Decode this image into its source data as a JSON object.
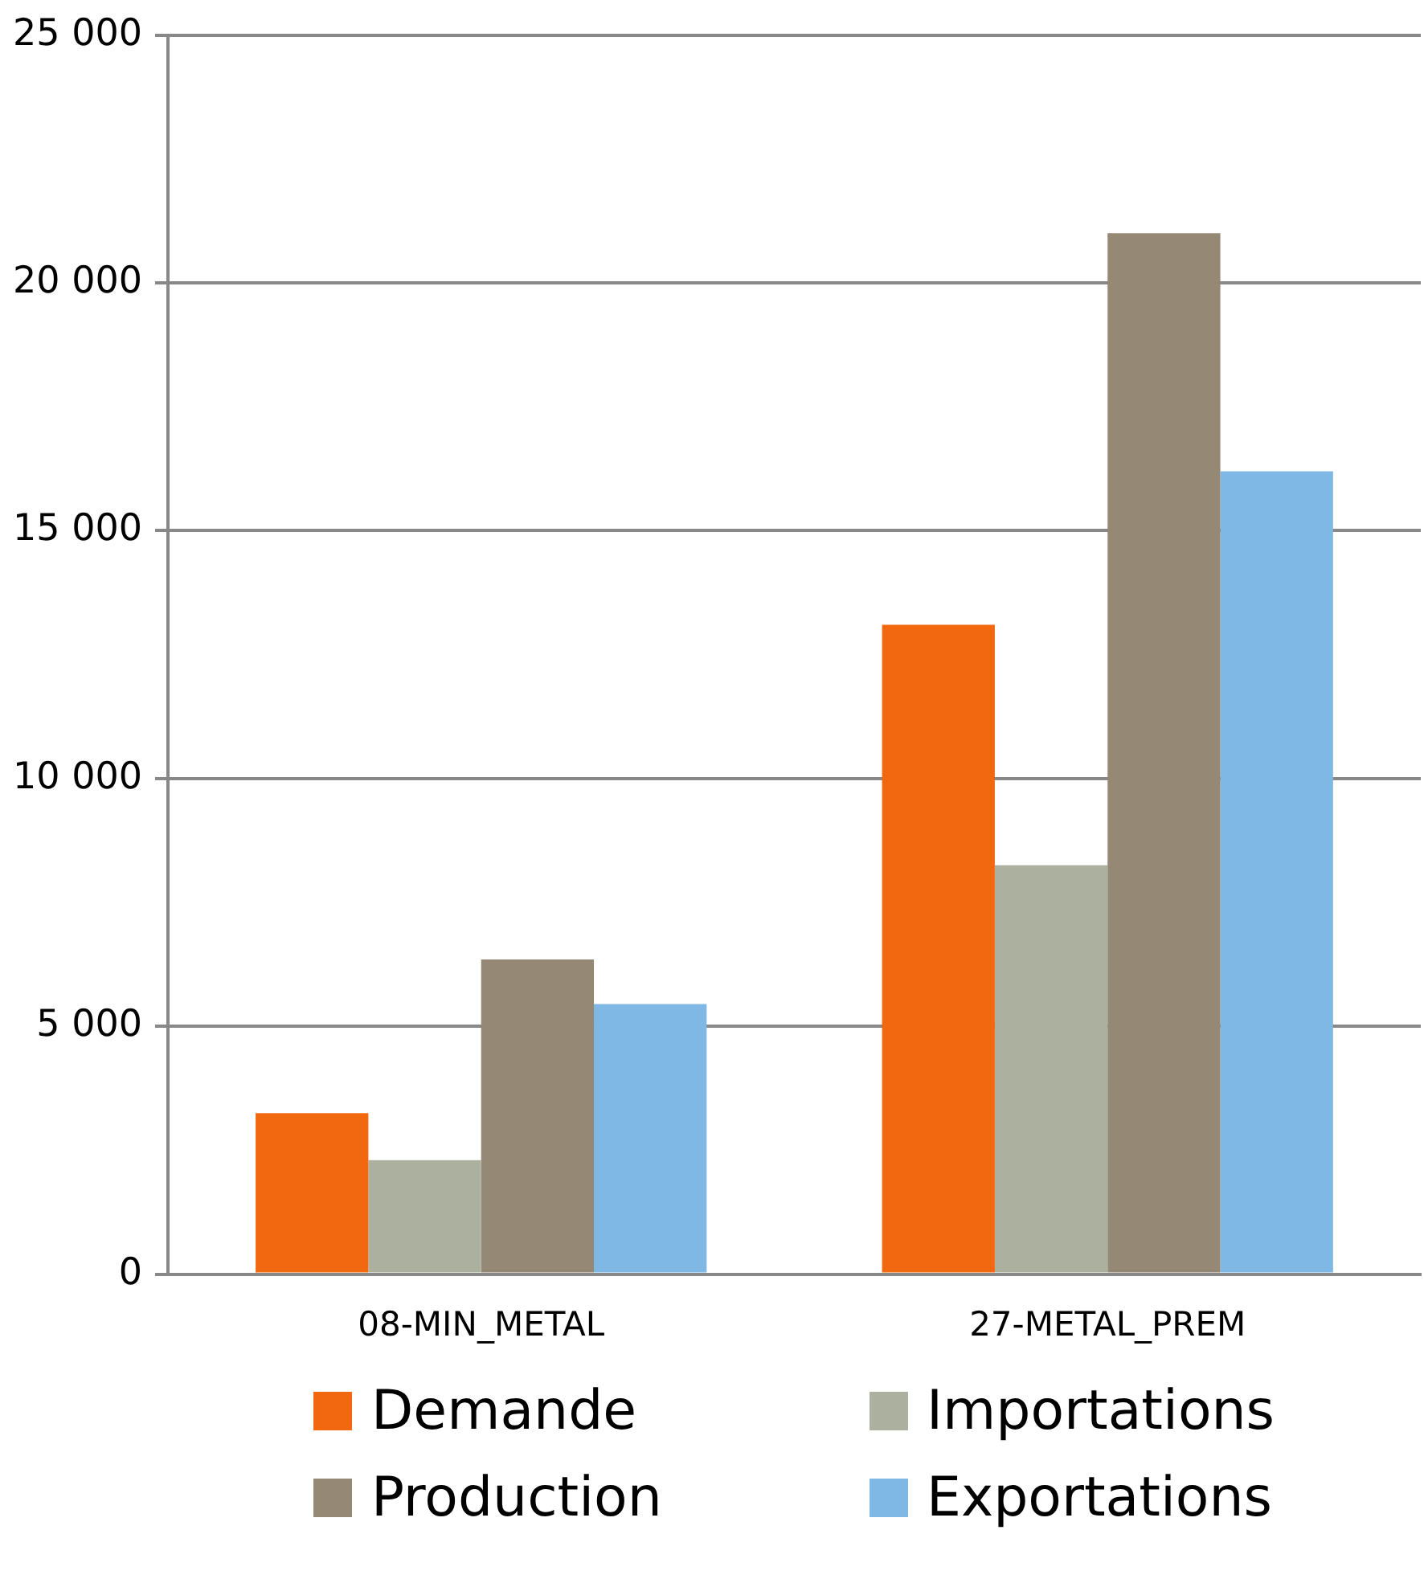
{
  "chart_data": {
    "type": "bar",
    "categories": [
      "08-MIN_METAL",
      "27-METAL_PREM"
    ],
    "series": [
      {
        "name": "Demande",
        "color": "#f26810",
        "values": [
          3250,
          13100
        ]
      },
      {
        "name": "Importations",
        "color": "#abb19e",
        "values": [
          2300,
          8250
        ]
      },
      {
        "name": "Production",
        "color": "#958874",
        "values": [
          6350,
          21000
        ]
      },
      {
        "name": "Exportations",
        "color": "#7fb8e4",
        "values": [
          5450,
          16200
        ]
      }
    ],
    "ylim": [
      0,
      25000
    ],
    "yticks": [
      {
        "value": 0,
        "label": "0"
      },
      {
        "value": 5000,
        "label": "5 000"
      },
      {
        "value": 10000,
        "label": "10 000"
      },
      {
        "value": 15000,
        "label": "15 000"
      },
      {
        "value": 20000,
        "label": "20 000"
      },
      {
        "value": 25000,
        "label": "25 000"
      }
    ],
    "grid": "y",
    "legend": "bottom"
  }
}
